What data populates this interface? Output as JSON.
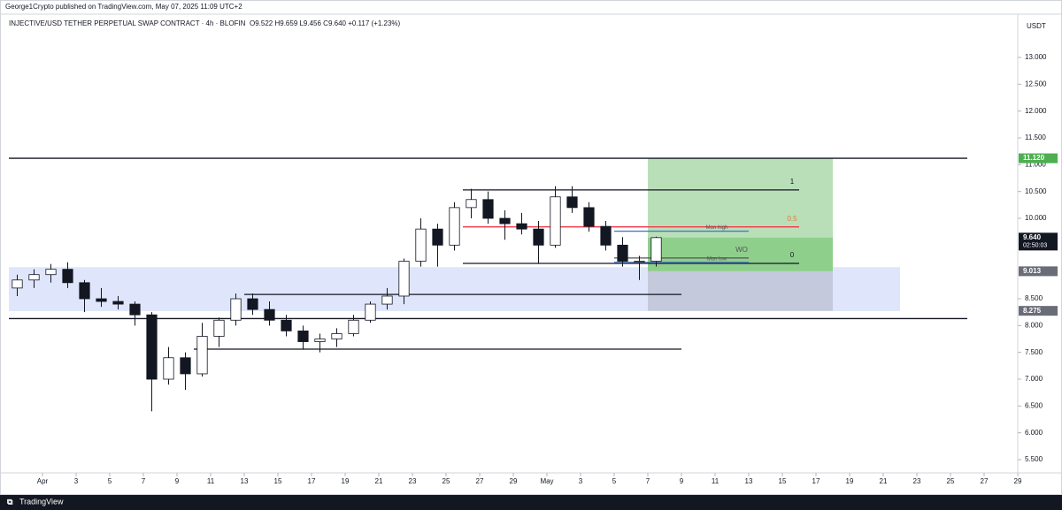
{
  "header": {
    "published": "George1Crypto published on TradingView.com, May 07, 2025 11:09 UTC+2",
    "symbol": "INJECTIVE/USD TETHER PERPETUAL SWAP CONTRACT · 4h · BLOFIN",
    "ohlc": "O9.522 H9.659 L9.456 C9.640 +0.117 (+1.23%)",
    "currency": "USDT"
  },
  "footer": {
    "brand": "TradingView"
  },
  "chart_data": {
    "type": "candlestick",
    "up_color": "#ffffff",
    "down_color": "#131722",
    "wick_color": "#131722",
    "x": [
      "Mar 30",
      "Mar 31",
      "Apr 1",
      "Apr 2",
      "Apr 3",
      "Apr 4",
      "Apr 5",
      "Apr 6",
      "Apr 7",
      "Apr 8",
      "Apr 9",
      "Apr 10",
      "Apr 11",
      "Apr 12",
      "Apr 13",
      "Apr 14",
      "Apr 15",
      "Apr 16",
      "Apr 17",
      "Apr 18",
      "Apr 19",
      "Apr 20",
      "Apr 21",
      "Apr 22",
      "Apr 23",
      "Apr 24",
      "Apr 25",
      "Apr 26",
      "Apr 27",
      "Apr 28",
      "Apr 29",
      "Apr 30",
      "May 1",
      "May 2",
      "May 3",
      "May 4",
      "May 5",
      "May 6",
      "May 7"
    ],
    "open": [
      8.7,
      8.85,
      8.95,
      9.05,
      8.8,
      8.5,
      8.45,
      8.4,
      8.2,
      7.0,
      7.4,
      7.1,
      7.8,
      8.1,
      8.5,
      8.3,
      8.1,
      7.9,
      7.7,
      7.75,
      7.85,
      8.1,
      8.4,
      8.55,
      9.2,
      9.8,
      9.5,
      10.2,
      10.35,
      10.0,
      9.9,
      9.8,
      9.5,
      10.4,
      10.2,
      9.85,
      9.5,
      9.2,
      9.2
    ],
    "high": [
      8.95,
      9.05,
      9.15,
      9.18,
      8.85,
      8.7,
      8.55,
      8.45,
      8.25,
      7.6,
      7.5,
      8.05,
      8.15,
      8.6,
      8.6,
      8.45,
      8.2,
      8.0,
      7.85,
      7.95,
      8.2,
      8.45,
      8.7,
      9.25,
      10.0,
      9.9,
      10.3,
      10.55,
      10.5,
      10.15,
      10.1,
      9.95,
      10.6,
      10.6,
      10.3,
      9.95,
      9.65,
      9.3,
      9.659
    ],
    "low": [
      8.55,
      8.7,
      8.8,
      8.7,
      8.25,
      8.35,
      8.3,
      8.0,
      6.4,
      6.9,
      6.8,
      7.05,
      7.6,
      8.0,
      8.2,
      8.0,
      7.8,
      7.55,
      7.5,
      7.6,
      7.8,
      8.05,
      8.3,
      8.4,
      9.1,
      9.1,
      9.4,
      10.0,
      9.9,
      9.6,
      9.7,
      9.15,
      9.45,
      10.1,
      9.75,
      9.4,
      9.1,
      8.85,
      9.1
    ],
    "close": [
      8.85,
      8.95,
      9.05,
      8.8,
      8.5,
      8.45,
      8.4,
      8.2,
      7.0,
      7.4,
      7.1,
      7.8,
      8.1,
      8.5,
      8.3,
      8.1,
      7.9,
      7.7,
      7.75,
      7.85,
      8.1,
      8.4,
      8.55,
      9.2,
      9.8,
      9.5,
      10.2,
      10.35,
      10.0,
      9.9,
      9.8,
      9.5,
      10.4,
      10.2,
      9.85,
      9.5,
      9.2,
      9.2,
      9.64
    ],
    "xlim": [
      "Mar 30",
      "May 29"
    ],
    "xticks": [
      {
        "value": "Apr 1",
        "label": "Apr"
      },
      {
        "value": "Apr 3",
        "label": "3"
      },
      {
        "value": "Apr 5",
        "label": "5"
      },
      {
        "value": "Apr 7",
        "label": "7"
      },
      {
        "value": "Apr 9",
        "label": "9"
      },
      {
        "value": "Apr 11",
        "label": "11"
      },
      {
        "value": "Apr 13",
        "label": "13"
      },
      {
        "value": "Apr 15",
        "label": "15"
      },
      {
        "value": "Apr 17",
        "label": "17"
      },
      {
        "value": "Apr 19",
        "label": "19"
      },
      {
        "value": "Apr 21",
        "label": "21"
      },
      {
        "value": "Apr 23",
        "label": "23"
      },
      {
        "value": "Apr 25",
        "label": "25"
      },
      {
        "value": "Apr 27",
        "label": "27"
      },
      {
        "value": "Apr 29",
        "label": "29"
      },
      {
        "value": "May 1",
        "label": "May"
      },
      {
        "value": "May 3",
        "label": "3"
      },
      {
        "value": "May 5",
        "label": "5"
      },
      {
        "value": "May 7",
        "label": "7"
      },
      {
        "value": "May 9",
        "label": "9"
      },
      {
        "value": "May 11",
        "label": "11"
      },
      {
        "value": "May 13",
        "label": "13"
      },
      {
        "value": "May 15",
        "label": "15"
      },
      {
        "value": "May 17",
        "label": "17"
      },
      {
        "value": "May 19",
        "label": "19"
      },
      {
        "value": "May 21",
        "label": "21"
      },
      {
        "value": "May 23",
        "label": "23"
      },
      {
        "value": "May 25",
        "label": "25"
      },
      {
        "value": "May 27",
        "label": "27"
      },
      {
        "value": "May 29",
        "label": "29"
      }
    ],
    "ylim": [
      5.253,
      13.412
    ],
    "yticks": [
      {
        "value": 5.5,
        "label": "5.500"
      },
      {
        "value": 6,
        "label": "6.000"
      },
      {
        "value": 6.5,
        "label": "6.500"
      },
      {
        "value": 7,
        "label": "7.000"
      },
      {
        "value": 7.5,
        "label": "7.500"
      },
      {
        "value": 8,
        "label": "8.000"
      },
      {
        "value": 8.5,
        "label": "8.500"
      },
      {
        "value": 10,
        "label": "10.000"
      },
      {
        "value": 10.5,
        "label": "10.500"
      },
      {
        "value": 11,
        "label": "11.000"
      },
      {
        "value": 11.5,
        "label": "11.500"
      },
      {
        "value": 12,
        "label": "12.000"
      },
      {
        "value": 12.5,
        "label": "12.500"
      },
      {
        "value": 13,
        "label": "13.000"
      }
    ],
    "zones": [
      {
        "top": 9.09,
        "bottom": 8.27,
        "from": "Mar 30",
        "to": "May 22",
        "color": "#dfe6fb"
      },
      {
        "top": 11.12,
        "bottom": 9.013,
        "from": "May 7",
        "to": "May 18",
        "color": "#b9dfb8"
      },
      {
        "top": 9.64,
        "bottom": 9.013,
        "from": "May 7",
        "to": "May 18",
        "color": "#8fcf8c"
      },
      {
        "top": 9.013,
        "bottom": 8.275,
        "from": "May 7",
        "to": "May 18",
        "color": "#c5c9dc"
      }
    ],
    "levels": [
      {
        "price": 11.12,
        "from": "Mar 30",
        "to": "May 26",
        "color": "#131722"
      },
      {
        "price": 8.13,
        "from": "Mar 30",
        "to": "May 26",
        "color": "#131722"
      },
      {
        "price": 10.53,
        "from": "Apr 26",
        "to": "May 16",
        "color": "#131722",
        "label": "1",
        "label_color": "#131722"
      },
      {
        "price": 9.84,
        "from": "Apr 26",
        "to": "May 16",
        "color": "#f23645",
        "label": "0.5",
        "label_color": "#e07b39"
      },
      {
        "price": 9.16,
        "from": "Apr 26",
        "to": "May 16",
        "color": "#131722",
        "label": "0",
        "label_color": "#131722"
      },
      {
        "price": 8.58,
        "from": "Apr 13",
        "to": "May 9",
        "color": "#131722"
      },
      {
        "price": 7.56,
        "from": "Apr 10",
        "to": "May 9",
        "color": "#131722"
      },
      {
        "price": 9.76,
        "from": "May 5",
        "to": "May 13",
        "color": "#4a7ac7",
        "label": "Mon high",
        "label_color": "#555"
      },
      {
        "price": 9.26,
        "from": "May 5",
        "to": "May 13",
        "color": "#555555",
        "label": "WO",
        "label_color": "#555"
      },
      {
        "price": 9.18,
        "from": "May 5",
        "to": "May 13",
        "color": "#4a7ac7",
        "label": "Mon low",
        "label_color": "#555"
      }
    ],
    "price_labels": [
      {
        "value": 11.12,
        "label": "11.120",
        "color": "#4caf50"
      },
      {
        "value": 9.64,
        "label": "9.640",
        "sub": "02:50:03",
        "color": "#131722"
      },
      {
        "value": 9.013,
        "label": "9.013",
        "color": "#6a6d78"
      },
      {
        "value": 8.275,
        "label": "8.275",
        "color": "#6a6d78"
      }
    ]
  }
}
